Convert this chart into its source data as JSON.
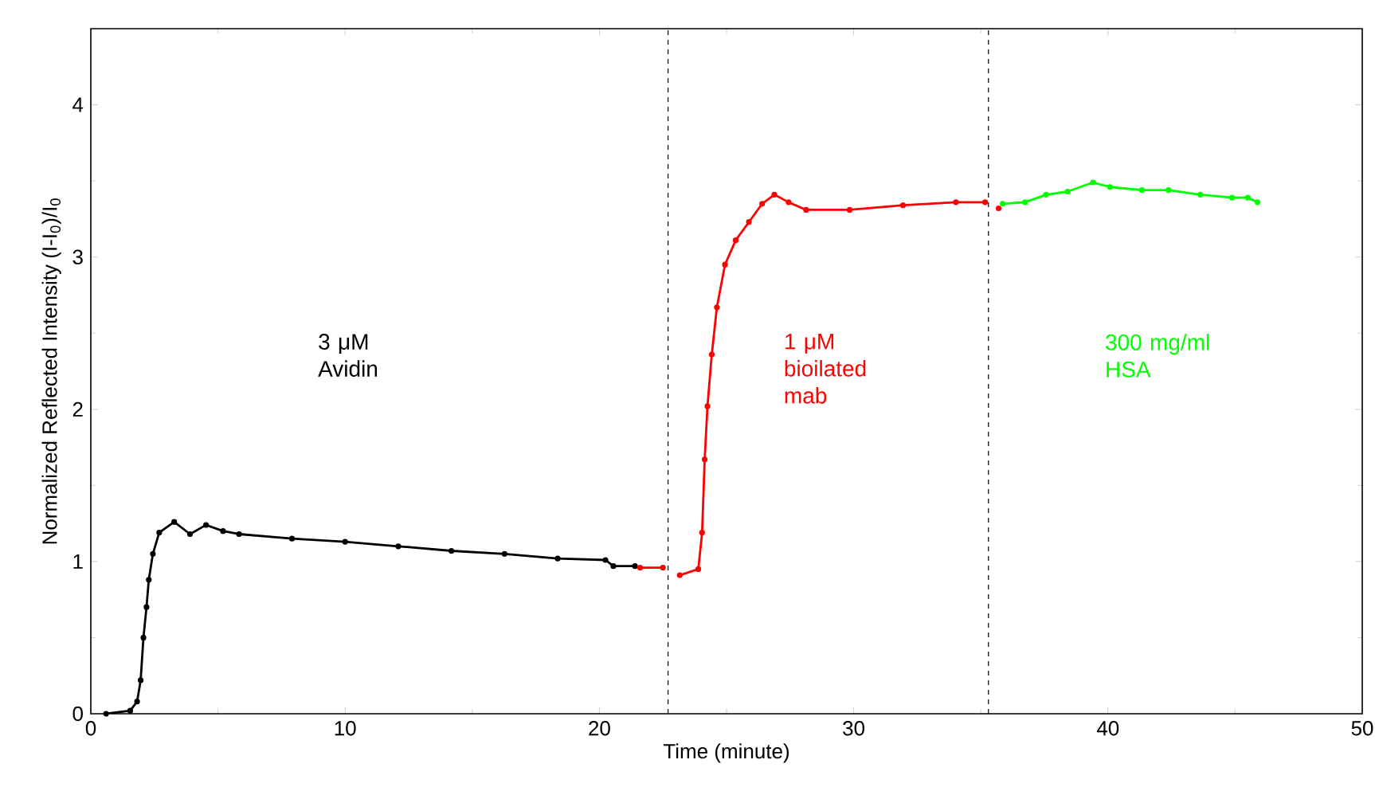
{
  "chart_data": {
    "type": "line",
    "xlabel": "Time (minute)",
    "ylabel": "Normalized Reflected Intensity (I-I$_{0}$)/I$_{0}$",
    "xlim": [
      0,
      50
    ],
    "ylim": [
      0,
      4.5
    ],
    "xticks": [
      0,
      10,
      20,
      30,
      40,
      50
    ],
    "yticks": [
      0,
      1,
      2,
      3,
      4
    ],
    "marker": "circle",
    "series": [
      {
        "color": "#000000",
        "x": [
          0.6,
          1.55,
          1.82,
          1.96,
          2.07,
          2.19,
          2.28,
          2.44,
          2.69,
          3.28,
          3.9,
          4.53,
          5.2,
          5.83,
          7.91,
          10.0,
          12.09,
          14.18,
          16.27,
          18.36,
          20.24,
          20.55,
          21.4
        ],
        "values": [
          0,
          0.02,
          0.08,
          0.22,
          0.5,
          0.7,
          0.88,
          1.05,
          1.19,
          1.26,
          1.18,
          1.24,
          1.2,
          1.18,
          1.15,
          1.13,
          1.1,
          1.07,
          1.05,
          1.02,
          1.01,
          0.97,
          0.97
        ]
      },
      {
        "color": "#ff0000",
        "x": [
          21.6,
          22.5,
          22.6,
          23.16,
          23.89,
          24.04,
          24.14,
          24.25,
          24.42,
          24.62,
          24.94,
          25.36,
          25.88,
          26.4,
          26.88,
          27.44,
          28.13,
          29.84,
          31.94,
          34.02,
          35.17,
          35.3,
          35.7
        ],
        "values": [
          0.96,
          0.96,
          null,
          0.91,
          0.95,
          1.19,
          1.67,
          2.02,
          2.36,
          2.67,
          2.95,
          3.11,
          3.23,
          3.35,
          3.41,
          3.36,
          3.31,
          3.31,
          3.34,
          3.36,
          3.36,
          null,
          3.32
        ]
      },
      {
        "color": "#00ff00",
        "x": [
          35.86,
          36.74,
          37.57,
          38.41,
          39.41,
          40.08,
          41.33,
          42.38,
          43.63,
          44.88,
          45.5,
          45.88
        ],
        "values": [
          3.35,
          3.36,
          3.41,
          3.43,
          3.49,
          3.46,
          3.44,
          3.44,
          3.41,
          3.39,
          3.39,
          3.36
        ]
      }
    ],
    "ref_lines": [
      {
        "axis": "x",
        "value": 22.7,
        "color": "#000000",
        "line_style": "dashed"
      },
      {
        "axis": "x",
        "value": 35.3,
        "color": "#000000",
        "line_style": "dashed"
      }
    ],
    "annotations": [
      "3 μM Avidin",
      "1 μM bioilated mab",
      "300 mg/ml HSA"
    ]
  }
}
